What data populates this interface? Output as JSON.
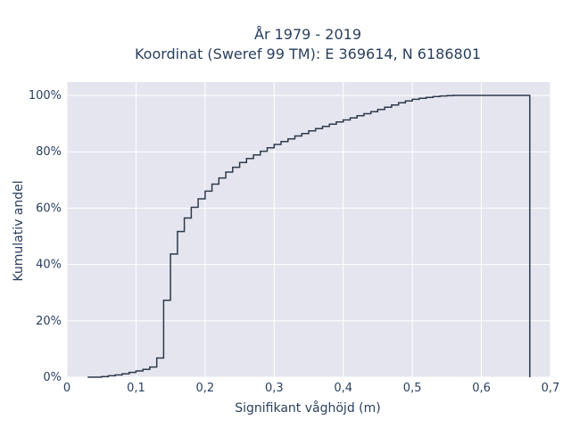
{
  "chart_data": {
    "type": "line",
    "step": true,
    "title_lines": [
      "År 1979 - 2019",
      "Koordinat (Sweref 99 TM): E 369614, N 6186801"
    ],
    "xlabel": "Signifikant våghöjd (m)",
    "ylabel": "Kumulativ andel",
    "xlim": [
      0,
      0.7
    ],
    "ylim": [
      0,
      1
    ],
    "x_ticks": [
      0,
      0.1,
      0.2,
      0.3,
      0.4,
      0.5,
      0.6,
      0.7
    ],
    "x_tick_labels": [
      "0",
      "0,1",
      "0,2",
      "0,3",
      "0,4",
      "0,5",
      "0,6",
      "0,7"
    ],
    "y_ticks": [
      0,
      0.2,
      0.4,
      0.6,
      0.8,
      1.0
    ],
    "y_tick_labels": [
      "0%",
      "20%",
      "40%",
      "60%",
      "80%",
      "100%"
    ],
    "grid": true,
    "colors": {
      "plot_bg": "#e5e5ef",
      "grid": "#ffffff",
      "line": "#2e3a4a"
    },
    "series": [
      {
        "x": [
          0.03,
          0.05,
          0.06,
          0.07,
          0.08,
          0.09,
          0.1,
          0.11,
          0.12,
          0.13,
          0.14,
          0.15,
          0.16,
          0.17,
          0.18,
          0.19,
          0.2,
          0.21,
          0.22,
          0.23,
          0.24,
          0.25,
          0.26,
          0.27,
          0.28,
          0.29,
          0.3,
          0.31,
          0.32,
          0.33,
          0.34,
          0.35,
          0.36,
          0.37,
          0.38,
          0.39,
          0.4,
          0.41,
          0.42,
          0.43,
          0.44,
          0.45,
          0.46,
          0.47,
          0.48,
          0.49,
          0.5,
          0.51,
          0.52,
          0.53,
          0.54,
          0.55,
          0.56,
          0.57,
          0.58,
          0.59,
          0.6,
          0.67
        ],
        "y": [
          0.0,
          0.002,
          0.005,
          0.008,
          0.012,
          0.017,
          0.022,
          0.028,
          0.036,
          0.068,
          0.273,
          0.437,
          0.517,
          0.565,
          0.603,
          0.633,
          0.66,
          0.685,
          0.707,
          0.728,
          0.745,
          0.762,
          0.776,
          0.789,
          0.802,
          0.814,
          0.826,
          0.836,
          0.846,
          0.856,
          0.865,
          0.874,
          0.882,
          0.89,
          0.898,
          0.906,
          0.913,
          0.92,
          0.928,
          0.935,
          0.942,
          0.95,
          0.958,
          0.966,
          0.974,
          0.98,
          0.986,
          0.99,
          0.993,
          0.996,
          0.998,
          0.999,
          1.0,
          1.0,
          1.0,
          1.0,
          1.0,
          0.0
        ]
      }
    ]
  }
}
